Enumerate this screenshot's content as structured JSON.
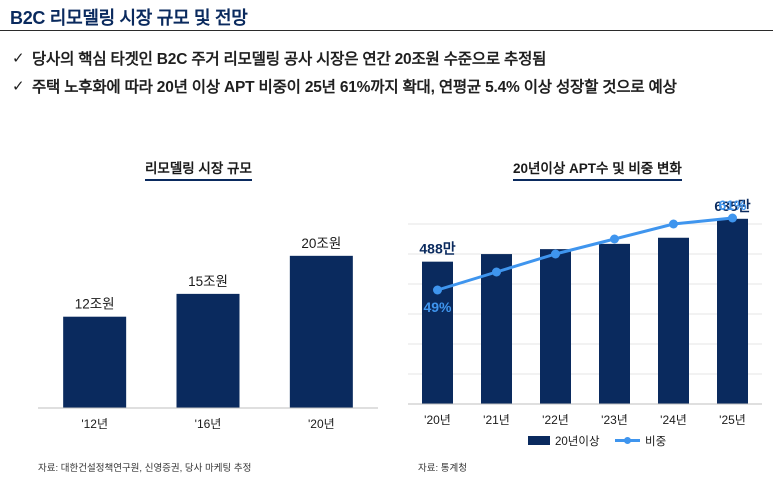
{
  "header": {
    "title": "B2C 리모델링 시장 규모 및 전망"
  },
  "bullets": [
    {
      "mark": "✓",
      "text": "당사의 핵심 타겟인 B2C 주거 리모델링 공사 시장은 연간 20조원 수준으로 추정됨"
    },
    {
      "mark": "✓",
      "text": "주택 노후화에 따라 20년 이상 APT 비중이 25년 61%까지 확대, 연평균 5.4% 이상 성장할 것으로 예상"
    }
  ],
  "colors": {
    "bar": "#0a2a5e",
    "line": "#3f95ee",
    "axis": "#bfbfbf",
    "grid": "#e6e6e6"
  },
  "chart_data": [
    {
      "type": "bar",
      "title": "리모델링 시장 규모",
      "categories": [
        "'12년",
        "'16년",
        "'20년"
      ],
      "values": [
        12,
        15,
        20
      ],
      "data_labels": [
        "12조원",
        "15조원",
        "20조원"
      ],
      "ylim": [
        0,
        23
      ],
      "grid": false,
      "source": "자료: 대한건설정책연구원, 신영증권, 당사 마케팅 추정"
    },
    {
      "type": "bar+line",
      "title": "20년이상 APT수 및 비중 변화",
      "categories": [
        "'20년",
        "'21년",
        "'22년",
        "'23년",
        "'24년",
        "'25년"
      ],
      "series": [
        {
          "name": "20년이상",
          "type": "bar",
          "values": [
            488,
            514,
            531,
            549,
            570,
            635
          ]
        },
        {
          "name": "비중",
          "type": "line",
          "values": [
            49,
            52,
            55,
            57.5,
            60,
            61
          ]
        }
      ],
      "bar_ylim": [
        0,
        720
      ],
      "line_ylim": [
        30,
        65
      ],
      "annotations": [
        {
          "series": "20년이상",
          "index": 0,
          "text": "488만"
        },
        {
          "series": "20년이상",
          "index": 5,
          "text": "635만"
        },
        {
          "series": "비중",
          "index": 0,
          "text": "49%"
        },
        {
          "series": "비중",
          "index": 5,
          "text": "61%"
        }
      ],
      "legend": "bottom",
      "grid": true,
      "source": "자료: 통계청"
    }
  ]
}
